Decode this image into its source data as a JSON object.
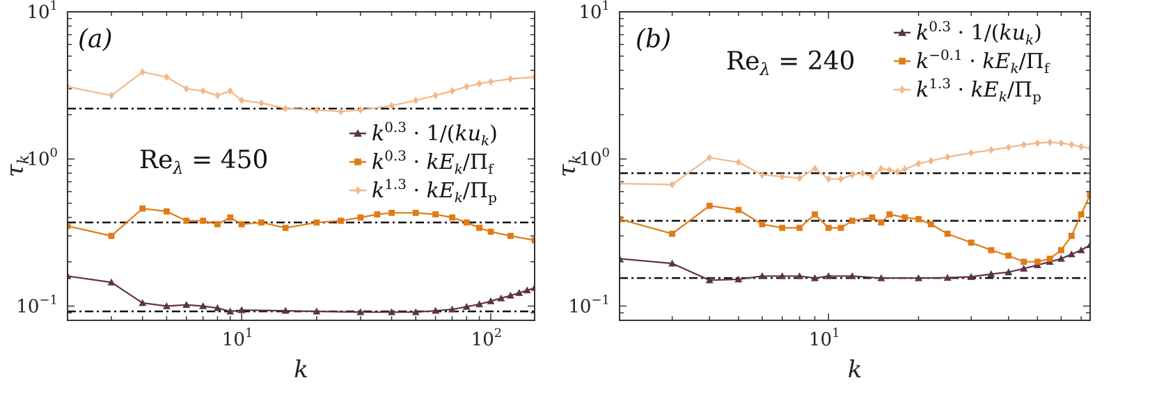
{
  "chart_data": [
    {
      "type": "line",
      "panel_label": "(a)",
      "annotation": "Re_λ = 450",
      "annotation_parts": {
        "base": "Re",
        "sub": "λ",
        "rest": " = 450"
      },
      "xlabel": "k",
      "ylabel": "τ_k",
      "xscale": "log",
      "yscale": "log",
      "xlim": [
        2,
        150
      ],
      "ylim": [
        0.08,
        10
      ],
      "xticks": [
        {
          "v": 10,
          "b": "10",
          "e": "1"
        },
        {
          "v": 100,
          "b": "10",
          "e": "2"
        }
      ],
      "yticks": [
        {
          "v": 0.1,
          "b": "10",
          "e": "−1"
        },
        {
          "v": 1,
          "b": "10",
          "e": "0"
        },
        {
          "v": 10,
          "b": "10",
          "e": "1"
        }
      ],
      "legend_position": "center-right",
      "reference_lines": [
        0.092,
        0.37,
        2.2
      ],
      "series": [
        {
          "name": "k^0.3 · 1/(ku_k)",
          "legend": {
            "pre": "k",
            "sup": "0.3",
            "mid": " · 1/(",
            "it": "ku",
            "sub": "k",
            "post": ")"
          },
          "color": "#5e3344",
          "marker": "triangle",
          "x": [
            2,
            3,
            4,
            5,
            6,
            7,
            8,
            9,
            10,
            15,
            20,
            30,
            40,
            50,
            60,
            70,
            80,
            90,
            100,
            110,
            120,
            130,
            140,
            150
          ],
          "y": [
            0.16,
            0.145,
            0.105,
            0.1,
            0.102,
            0.1,
            0.097,
            0.092,
            0.094,
            0.093,
            0.092,
            0.091,
            0.091,
            0.091,
            0.093,
            0.095,
            0.099,
            0.103,
            0.108,
            0.113,
            0.118,
            0.123,
            0.128,
            0.133
          ]
        },
        {
          "name": "k^0.3 · kE_k/Π_f",
          "legend": {
            "pre": "k",
            "sup": "0.3",
            "mid": " · ",
            "it": "kE",
            "sub": "k",
            "post": "/Π",
            "sub2": "f"
          },
          "color": "#e07b16",
          "marker": "square",
          "x": [
            2,
            3,
            4,
            5,
            6,
            7,
            8,
            9,
            10,
            12,
            15,
            20,
            25,
            30,
            35,
            40,
            50,
            60,
            70,
            80,
            90,
            100,
            120,
            150
          ],
          "y": [
            0.35,
            0.3,
            0.46,
            0.44,
            0.38,
            0.38,
            0.36,
            0.4,
            0.36,
            0.37,
            0.34,
            0.37,
            0.38,
            0.4,
            0.42,
            0.43,
            0.43,
            0.42,
            0.4,
            0.37,
            0.34,
            0.32,
            0.3,
            0.28
          ]
        },
        {
          "name": "k^1.3 · kE_k/Π_p",
          "legend": {
            "pre": "k",
            "sup": "1.3",
            "mid": " · ",
            "it": "kE",
            "sub": "k",
            "post": "/Π",
            "sub2": "p"
          },
          "color": "#f2b88a",
          "marker": "diamond",
          "x": [
            2,
            3,
            4,
            5,
            6,
            7,
            8,
            9,
            10,
            12,
            15,
            20,
            25,
            30,
            40,
            50,
            60,
            70,
            80,
            90,
            100,
            120,
            150
          ],
          "y": [
            3.1,
            2.7,
            3.9,
            3.6,
            3.0,
            2.9,
            2.7,
            2.9,
            2.5,
            2.4,
            2.2,
            2.15,
            2.1,
            2.15,
            2.3,
            2.5,
            2.7,
            2.9,
            3.1,
            3.25,
            3.35,
            3.5,
            3.6
          ]
        }
      ]
    },
    {
      "type": "line",
      "panel_label": "(b)",
      "annotation": "Re_λ = 240",
      "annotation_parts": {
        "base": "Re",
        "sub": "λ",
        "rest": " = 240"
      },
      "xlabel": "k",
      "ylabel": "τ_k",
      "xscale": "log",
      "yscale": "log",
      "xlim": [
        2,
        75
      ],
      "ylim": [
        0.08,
        10
      ],
      "xticks": [
        {
          "v": 10,
          "b": "10",
          "e": "1"
        }
      ],
      "yticks": [
        {
          "v": 0.1,
          "b": "10",
          "e": "−1"
        },
        {
          "v": 1,
          "b": "10",
          "e": "0"
        },
        {
          "v": 10,
          "b": "10",
          "e": "1"
        }
      ],
      "legend_position": "top-right",
      "reference_lines": [
        0.155,
        0.38,
        0.8
      ],
      "series": [
        {
          "name": "k^0.3 · 1/(ku_k)",
          "legend": {
            "pre": "k",
            "sup": "0.3",
            "mid": " · 1/(",
            "it": "ku",
            "sub": "k",
            "post": ")"
          },
          "color": "#5e3344",
          "marker": "triangle",
          "x": [
            2,
            3,
            4,
            5,
            6,
            7,
            8,
            9,
            10,
            12,
            15,
            20,
            25,
            30,
            35,
            40,
            45,
            50,
            55,
            60,
            65,
            70,
            75
          ],
          "y": [
            0.21,
            0.195,
            0.15,
            0.152,
            0.16,
            0.16,
            0.16,
            0.155,
            0.16,
            0.16,
            0.155,
            0.155,
            0.156,
            0.158,
            0.165,
            0.17,
            0.18,
            0.19,
            0.2,
            0.21,
            0.225,
            0.24,
            0.26
          ]
        },
        {
          "name": "k^−0.1 · kE_k/Π_f",
          "legend": {
            "pre": "k",
            "sup": "−0.1",
            "mid": " · ",
            "it": "kE",
            "sub": "k",
            "post": "/Π",
            "sub2": "f"
          },
          "color": "#e07b16",
          "marker": "square",
          "x": [
            2,
            3,
            4,
            5,
            6,
            7,
            8,
            9,
            10,
            11,
            12,
            14,
            15,
            16,
            18,
            20,
            22,
            25,
            30,
            35,
            40,
            45,
            50,
            55,
            60,
            65,
            70,
            75
          ],
          "y": [
            0.39,
            0.31,
            0.48,
            0.45,
            0.36,
            0.34,
            0.34,
            0.42,
            0.34,
            0.34,
            0.38,
            0.4,
            0.37,
            0.42,
            0.4,
            0.39,
            0.36,
            0.31,
            0.27,
            0.24,
            0.22,
            0.2,
            0.2,
            0.21,
            0.24,
            0.3,
            0.42,
            0.57
          ]
        },
        {
          "name": "k^1.3 · kE_k/Π_p",
          "legend": {
            "pre": "k",
            "sup": "1.3",
            "mid": " · ",
            "it": "kE",
            "sub": "k",
            "post": "/Π",
            "sub2": "p"
          },
          "color": "#f2b88a",
          "marker": "diamond",
          "x": [
            2,
            3,
            4,
            5,
            6,
            7,
            8,
            9,
            10,
            11,
            12,
            13,
            14,
            15,
            16,
            17,
            18,
            20,
            22,
            25,
            30,
            35,
            40,
            45,
            50,
            55,
            60,
            65,
            70,
            75
          ],
          "y": [
            0.68,
            0.67,
            1.02,
            0.95,
            0.78,
            0.76,
            0.74,
            0.86,
            0.73,
            0.73,
            0.78,
            0.8,
            0.76,
            0.86,
            0.84,
            0.82,
            0.85,
            0.93,
            0.97,
            1.03,
            1.1,
            1.15,
            1.2,
            1.25,
            1.28,
            1.3,
            1.28,
            1.25,
            1.21,
            1.18
          ]
        }
      ]
    }
  ]
}
